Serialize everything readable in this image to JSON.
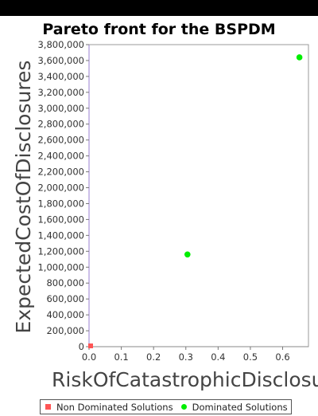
{
  "chart_data": {
    "type": "scatter",
    "title": "Pareto front for the BSPDM",
    "xlabel": "RiskOfCatastrophicDisclosu",
    "ylabel": "ExpectedCostOfDisclosures",
    "xlim": [
      0,
      0.68
    ],
    "ylim": [
      0,
      3800000
    ],
    "x_ticks": [
      "0.0",
      "0.1",
      "0.2",
      "0.3",
      "0.4",
      "0.5",
      "0.6"
    ],
    "y_ticks": [
      "0",
      "200,000",
      "400,000",
      "600,000",
      "800,000",
      "1,000,000",
      "1,200,000",
      "1,400,000",
      "1,600,000",
      "1,800,000",
      "2,000,000",
      "2,200,000",
      "2,400,000",
      "2,600,000",
      "2,800,000",
      "3,000,000",
      "3,200,000",
      "3,400,000",
      "3,600,000",
      "3,800,000"
    ],
    "grid": false,
    "legend_position": "bottom",
    "series": [
      {
        "name": "Non Dominated Solutions",
        "marker": "square",
        "color": "#ff5555",
        "points": [
          [
            0.0,
            10000
          ]
        ]
      },
      {
        "name": "Dominated Solutions",
        "marker": "circle",
        "color": "#00ee00",
        "points": [
          [
            0.305,
            1160000
          ],
          [
            0.652,
            3640000
          ]
        ]
      }
    ]
  }
}
